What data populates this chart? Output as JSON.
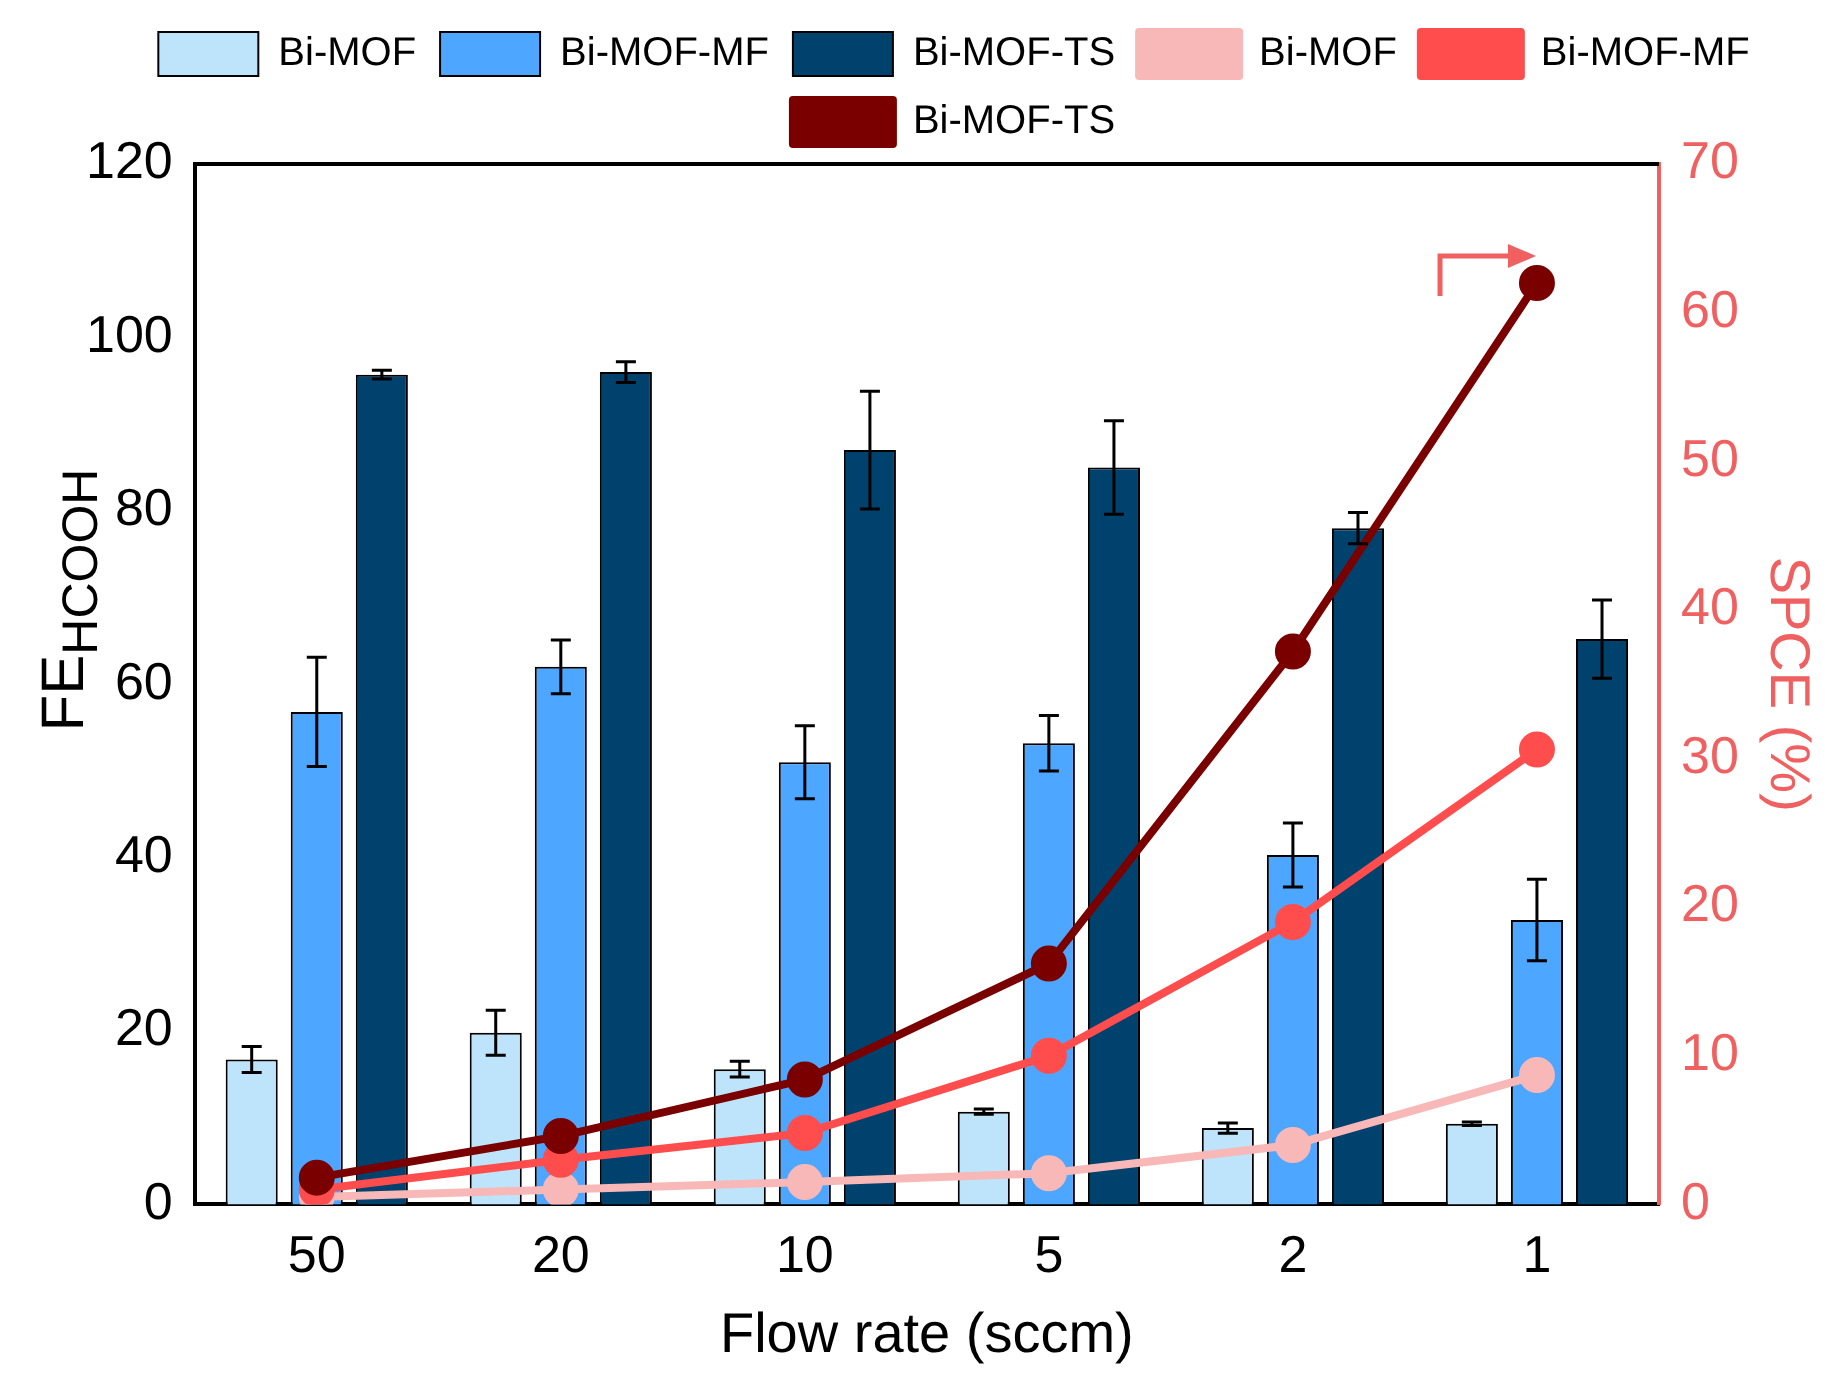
{
  "chart_data": {
    "type": "bar",
    "xlabel": "Flow rate (sccm)",
    "ylabel": "FE$_{HCOOH}$",
    "y2label": "SPCE (%)",
    "categories": [
      "50",
      "20",
      "10",
      "5",
      "2",
      "1"
    ],
    "series": [
      {
        "name": "Bi-MOF",
        "color": "#bde4fb",
        "values": [
          16.7,
          19.8,
          15.6,
          10.7,
          8.8,
          9.3
        ],
        "errors": [
          1.5,
          2.6,
          0.9,
          0.3,
          0.6,
          0.2
        ]
      },
      {
        "name": "Bi-MOF-MF",
        "color": "#4da6ff",
        "values": [
          56.8,
          62,
          51,
          53.2,
          40.3,
          32.8
        ],
        "errors": [
          6.3,
          3.1,
          4.2,
          3.2,
          3.7,
          4.7
        ]
      },
      {
        "name": "Bi-MOF-TS",
        "color": "#00426e",
        "values": [
          95.7,
          96,
          87,
          85,
          78,
          65.2
        ],
        "errors": [
          0.5,
          1.2,
          6.8,
          5.4,
          1.8,
          4.5
        ]
      },
      {
        "name": "Bi-MOF",
        "type": "line",
        "axis": "y2",
        "color": "#f9b8b8",
        "values": [
          0.5,
          1.0,
          1.5,
          2.1,
          4.0,
          8.7
        ]
      },
      {
        "name": "Bi-MOF-MF",
        "type": "line",
        "axis": "y2",
        "color": "#ff4d4d",
        "values": [
          1.0,
          3.0,
          4.8,
          10.0,
          19.0,
          30.6
        ]
      },
      {
        "name": "Bi-MOF-TS",
        "type": "line",
        "axis": "y2",
        "color": "#7a0000",
        "values": [
          1.8,
          4.6,
          8.4,
          16.2,
          37.2,
          62.0
        ]
      }
    ],
    "ylim": [
      0,
      120
    ],
    "yticks": [
      0,
      20,
      40,
      60,
      80,
      100,
      120
    ],
    "y2lim": [
      0,
      70
    ],
    "y2ticks": [
      0,
      10,
      20,
      30,
      40,
      50,
      60,
      70
    ],
    "marker": "circle",
    "line_style": "solid",
    "legend": "top",
    "grid": false
  }
}
